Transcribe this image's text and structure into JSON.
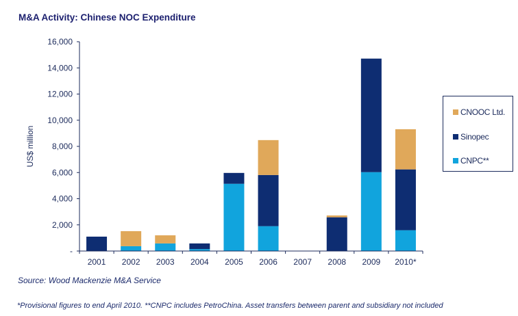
{
  "chart_data": {
    "type": "bar",
    "stacked": true,
    "title": "M&A Activity: Chinese NOC Expenditure",
    "xlabel": "",
    "ylabel": "US$ million",
    "ylim": [
      0,
      16000
    ],
    "yticks": [
      0,
      2000,
      4000,
      6000,
      8000,
      10000,
      12000,
      14000,
      16000
    ],
    "ytick_labels": [
      "-",
      "2,000",
      "4,000",
      "6,000",
      "8,000",
      "10,000",
      "12,000",
      "14,000",
      "16,000"
    ],
    "categories": [
      "2001",
      "2002",
      "2003",
      "2004",
      "2005",
      "2006",
      "2007",
      "2008",
      "2009",
      "2010*"
    ],
    "series": [
      {
        "name": "CNPC**",
        "color": "#11a4dd",
        "values": [
          0,
          370,
          580,
          150,
          5140,
          1900,
          0,
          0,
          6030,
          1590
        ]
      },
      {
        "name": "Sinopec",
        "color": "#0e2d72",
        "values": [
          1100,
          0,
          0,
          430,
          830,
          3910,
          0,
          2580,
          8680,
          4650
        ]
      },
      {
        "name": "CNOOC Ltd.",
        "color": "#e0a85a",
        "values": [
          0,
          1150,
          620,
          0,
          0,
          2670,
          0,
          140,
          0,
          3070
        ]
      }
    ],
    "legend": {
      "position": "right",
      "order": [
        "CNOOC Ltd.",
        "Sinopec",
        "CNPC**"
      ]
    },
    "grid": false
  },
  "source": "Source:  Wood Mackenzie M&A Service",
  "footnote": "*Provisional figures to end April 2010.  **CNPC includes PetroChina.  Asset transfers between parent and subsidiary not included"
}
